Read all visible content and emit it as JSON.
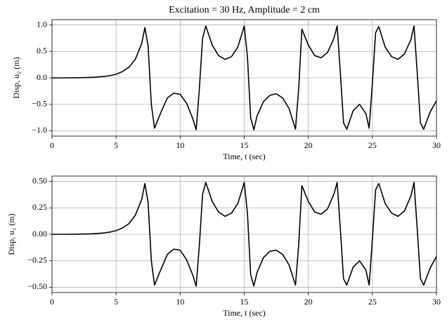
{
  "chart_data": [
    {
      "type": "line",
      "title": "Excitation = 30 Hz, Amplitude = 2 cm",
      "xlabel": "Time, t (sec)",
      "ylabel": "Disp, u₂ (m)",
      "color": "#000000",
      "grid": true,
      "xlim": [
        0,
        30
      ],
      "xticks": [
        0,
        5,
        10,
        15,
        20,
        25,
        30
      ],
      "ylim": [
        -1.1,
        1.1
      ],
      "yticks": [
        {
          "value": -1,
          "label": "−1.0"
        },
        {
          "value": -0.5,
          "label": "−0.5"
        },
        {
          "value": 0,
          "label": "0.0"
        },
        {
          "value": 0.5,
          "label": "0.5"
        },
        {
          "value": 1,
          "label": "1.0"
        }
      ],
      "x": [
        0,
        1,
        2,
        3,
        4,
        4.5,
        5,
        5.5,
        6,
        6.5,
        7,
        7.25,
        7.5,
        7.75,
        8,
        8.5,
        9,
        9.5,
        10,
        10.5,
        11,
        11.25,
        11.5,
        11.75,
        12,
        12.5,
        13,
        13.5,
        14,
        14.5,
        15,
        15.25,
        15.5,
        15.75,
        16,
        16.5,
        17,
        17.5,
        18,
        18.5,
        19,
        19.25,
        19.5,
        20,
        20.5,
        21,
        21.5,
        22,
        22.25,
        22.5,
        22.75,
        23,
        23.5,
        24,
        24.5,
        24.75,
        25,
        25.25,
        25.5,
        26,
        26.5,
        27,
        27.5,
        28,
        28.25,
        28.5,
        28.75,
        29,
        29.5,
        30
      ],
      "values": [
        0,
        0,
        0.002,
        0.008,
        0.025,
        0.04,
        0.07,
        0.12,
        0.2,
        0.35,
        0.65,
        0.95,
        0.6,
        -0.5,
        -0.95,
        -0.65,
        -0.38,
        -0.29,
        -0.31,
        -0.48,
        -0.78,
        -0.98,
        -0.2,
        0.75,
        0.98,
        0.62,
        0.42,
        0.35,
        0.4,
        0.58,
        0.98,
        0.4,
        -0.75,
        -0.98,
        -0.72,
        -0.45,
        -0.33,
        -0.3,
        -0.38,
        -0.58,
        -0.97,
        -0.2,
        0.92,
        0.62,
        0.42,
        0.38,
        0.48,
        0.75,
        0.98,
        0.1,
        -0.85,
        -0.97,
        -0.62,
        -0.5,
        -0.68,
        -0.95,
        -0.1,
        0.85,
        0.97,
        0.58,
        0.4,
        0.35,
        0.45,
        0.72,
        0.98,
        0.1,
        -0.85,
        -0.97,
        -0.65,
        -0.43
      ]
    },
    {
      "type": "line",
      "xlabel": "Time, t (sec)",
      "ylabel": "Disp, u₁ (m)",
      "color": "#000000",
      "grid": true,
      "xlim": [
        0,
        30
      ],
      "xticks": [
        0,
        5,
        10,
        15,
        20,
        25,
        30
      ],
      "ylim": [
        -0.55,
        0.55
      ],
      "yticks": [
        {
          "value": -0.5,
          "label": "−0.50"
        },
        {
          "value": -0.25,
          "label": "−0.25"
        },
        {
          "value": 0,
          "label": "0.00"
        },
        {
          "value": 0.25,
          "label": "0.25"
        },
        {
          "value": 0.5,
          "label": "0.50"
        }
      ],
      "x": [
        0,
        1,
        2,
        3,
        4,
        4.5,
        5,
        5.5,
        6,
        6.5,
        7,
        7.25,
        7.5,
        7.75,
        8,
        8.5,
        9,
        9.5,
        10,
        10.5,
        11,
        11.25,
        11.5,
        11.75,
        12,
        12.5,
        13,
        13.5,
        14,
        14.5,
        15,
        15.25,
        15.5,
        15.75,
        16,
        16.5,
        17,
        17.5,
        18,
        18.5,
        19,
        19.25,
        19.5,
        20,
        20.5,
        21,
        21.5,
        22,
        22.25,
        22.5,
        22.75,
        23,
        23.5,
        24,
        24.5,
        24.75,
        25,
        25.25,
        25.5,
        26,
        26.5,
        27,
        27.5,
        28,
        28.25,
        28.5,
        28.75,
        29,
        29.5,
        30
      ],
      "values": [
        0,
        0,
        0.001,
        0.004,
        0.012,
        0.02,
        0.035,
        0.06,
        0.1,
        0.18,
        0.33,
        0.48,
        0.3,
        -0.25,
        -0.48,
        -0.33,
        -0.19,
        -0.14,
        -0.15,
        -0.24,
        -0.39,
        -0.49,
        -0.1,
        0.38,
        0.49,
        0.31,
        0.21,
        0.17,
        0.2,
        0.29,
        0.49,
        0.2,
        -0.38,
        -0.49,
        -0.36,
        -0.22,
        -0.16,
        -0.15,
        -0.19,
        -0.29,
        -0.48,
        -0.1,
        0.46,
        0.31,
        0.21,
        0.19,
        0.24,
        0.38,
        0.49,
        0.05,
        -0.42,
        -0.48,
        -0.31,
        -0.25,
        -0.34,
        -0.48,
        -0.05,
        0.42,
        0.48,
        0.29,
        0.2,
        0.17,
        0.22,
        0.36,
        0.49,
        0.05,
        -0.42,
        -0.48,
        -0.32,
        -0.21
      ]
    }
  ]
}
